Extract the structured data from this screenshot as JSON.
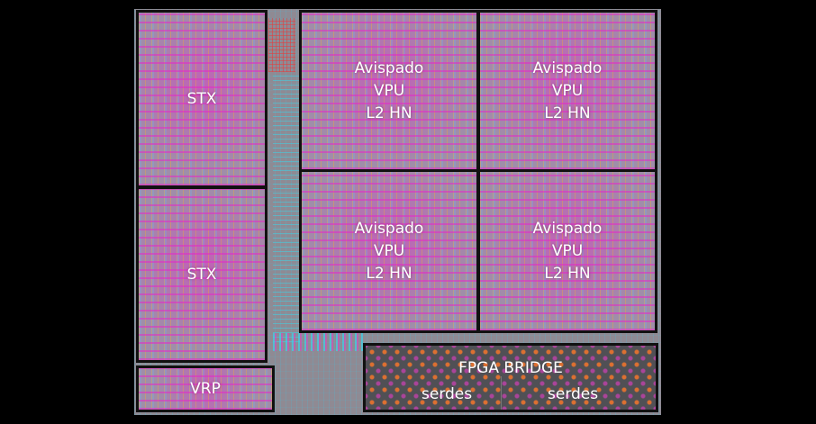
{
  "blocks": {
    "stx_top": "STX",
    "stx_bottom": "STX",
    "vrp": "VRP",
    "vpu_tl": {
      "line1": "Avispado",
      "line2": "VPU",
      "line3": "L2 HN"
    },
    "vpu_tr": {
      "line1": "Avispado",
      "line2": "VPU",
      "line3": "L2 HN"
    },
    "vpu_bl": {
      "line1": "Avispado",
      "line2": "VPU",
      "line3": "L2 HN"
    },
    "vpu_br": {
      "line1": "Avispado",
      "line2": "VPU",
      "line3": "L2 HN"
    }
  },
  "bridge": {
    "title": "FPGA BRIDGE",
    "left_label": "serdes",
    "right_label": "serdes"
  }
}
